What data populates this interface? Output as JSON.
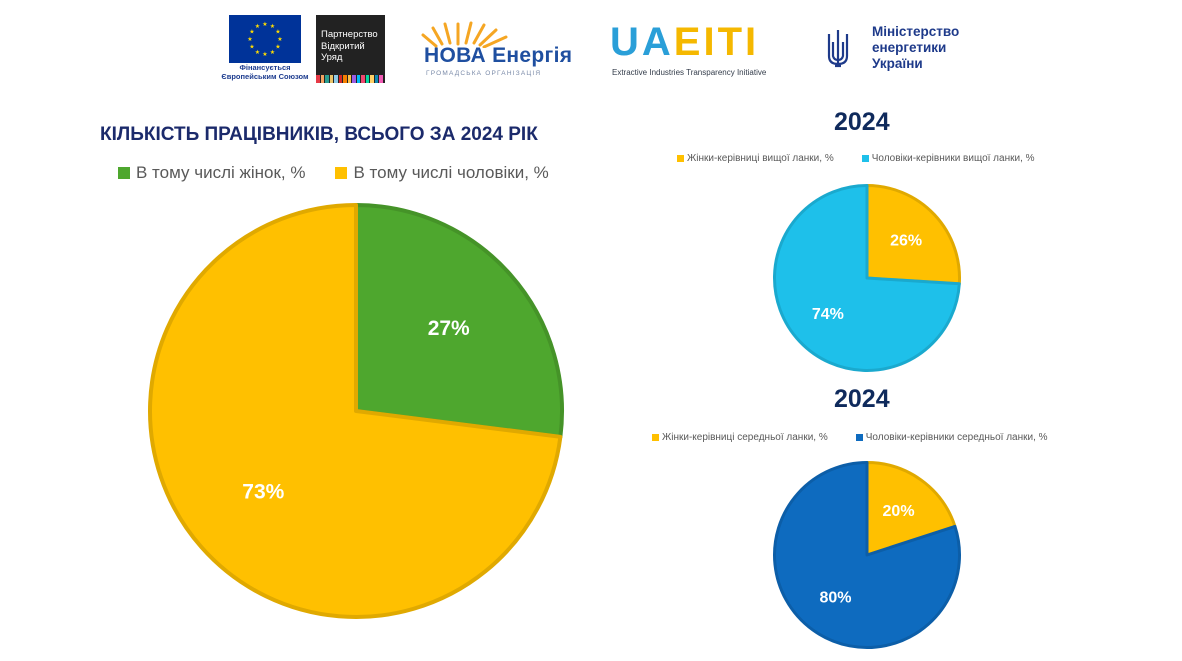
{
  "logos": {
    "eu_caption_line1": "Фінансується",
    "eu_caption_line2": "Європейським Союзом",
    "ovp_line1": "Партнерство",
    "ovp_line2": "Відкритий",
    "ovp_line3": "Уряд",
    "nova_title": "НОВА Енергія",
    "nova_sub": "ГРОМАДСЬКА ОРГАНІЗАЦІЯ",
    "uaeiti_ua": "UA",
    "uaeiti_eiti": "EITI",
    "uaeiti_sub": "Extractive Industries Transparency Initiative",
    "ministry_line1": "Міністерство",
    "ministry_line2": "енергетики",
    "ministry_line3": "України"
  },
  "chart_data": [
    {
      "type": "pie",
      "title": "КІЛЬКІСТЬ ПРАЦІВНИКІВ, ВСЬОГО ЗА 2024 РІК",
      "legend_placement": "top",
      "slices": [
        {
          "label": "В тому числі жінок, %",
          "value": 27,
          "display": "27%",
          "color": "#4ea72e"
        },
        {
          "label": "В тому числі чоловіки, %",
          "value": 73,
          "display": "73%",
          "color": "#ffc000"
        }
      ]
    },
    {
      "type": "pie",
      "title": "2024",
      "legend_placement": "top",
      "slices": [
        {
          "label": "Жінки-керівниці вищої ланки, %",
          "value": 26,
          "display": "26%",
          "color": "#ffc000"
        },
        {
          "label": "Чоловіки-керівники вищої ланки, %",
          "value": 74,
          "display": "74%",
          "color": "#1ec0ea"
        }
      ]
    },
    {
      "type": "pie",
      "title": "2024",
      "legend_placement": "top",
      "slices": [
        {
          "label": "Жінки-керівниці середньої ланки, %",
          "value": 20,
          "display": "20%",
          "color": "#ffc000"
        },
        {
          "label": "Чоловіки-керівники середньої ланки, %",
          "value": 80,
          "display": "80%",
          "color": "#0e6bbf"
        }
      ]
    }
  ]
}
